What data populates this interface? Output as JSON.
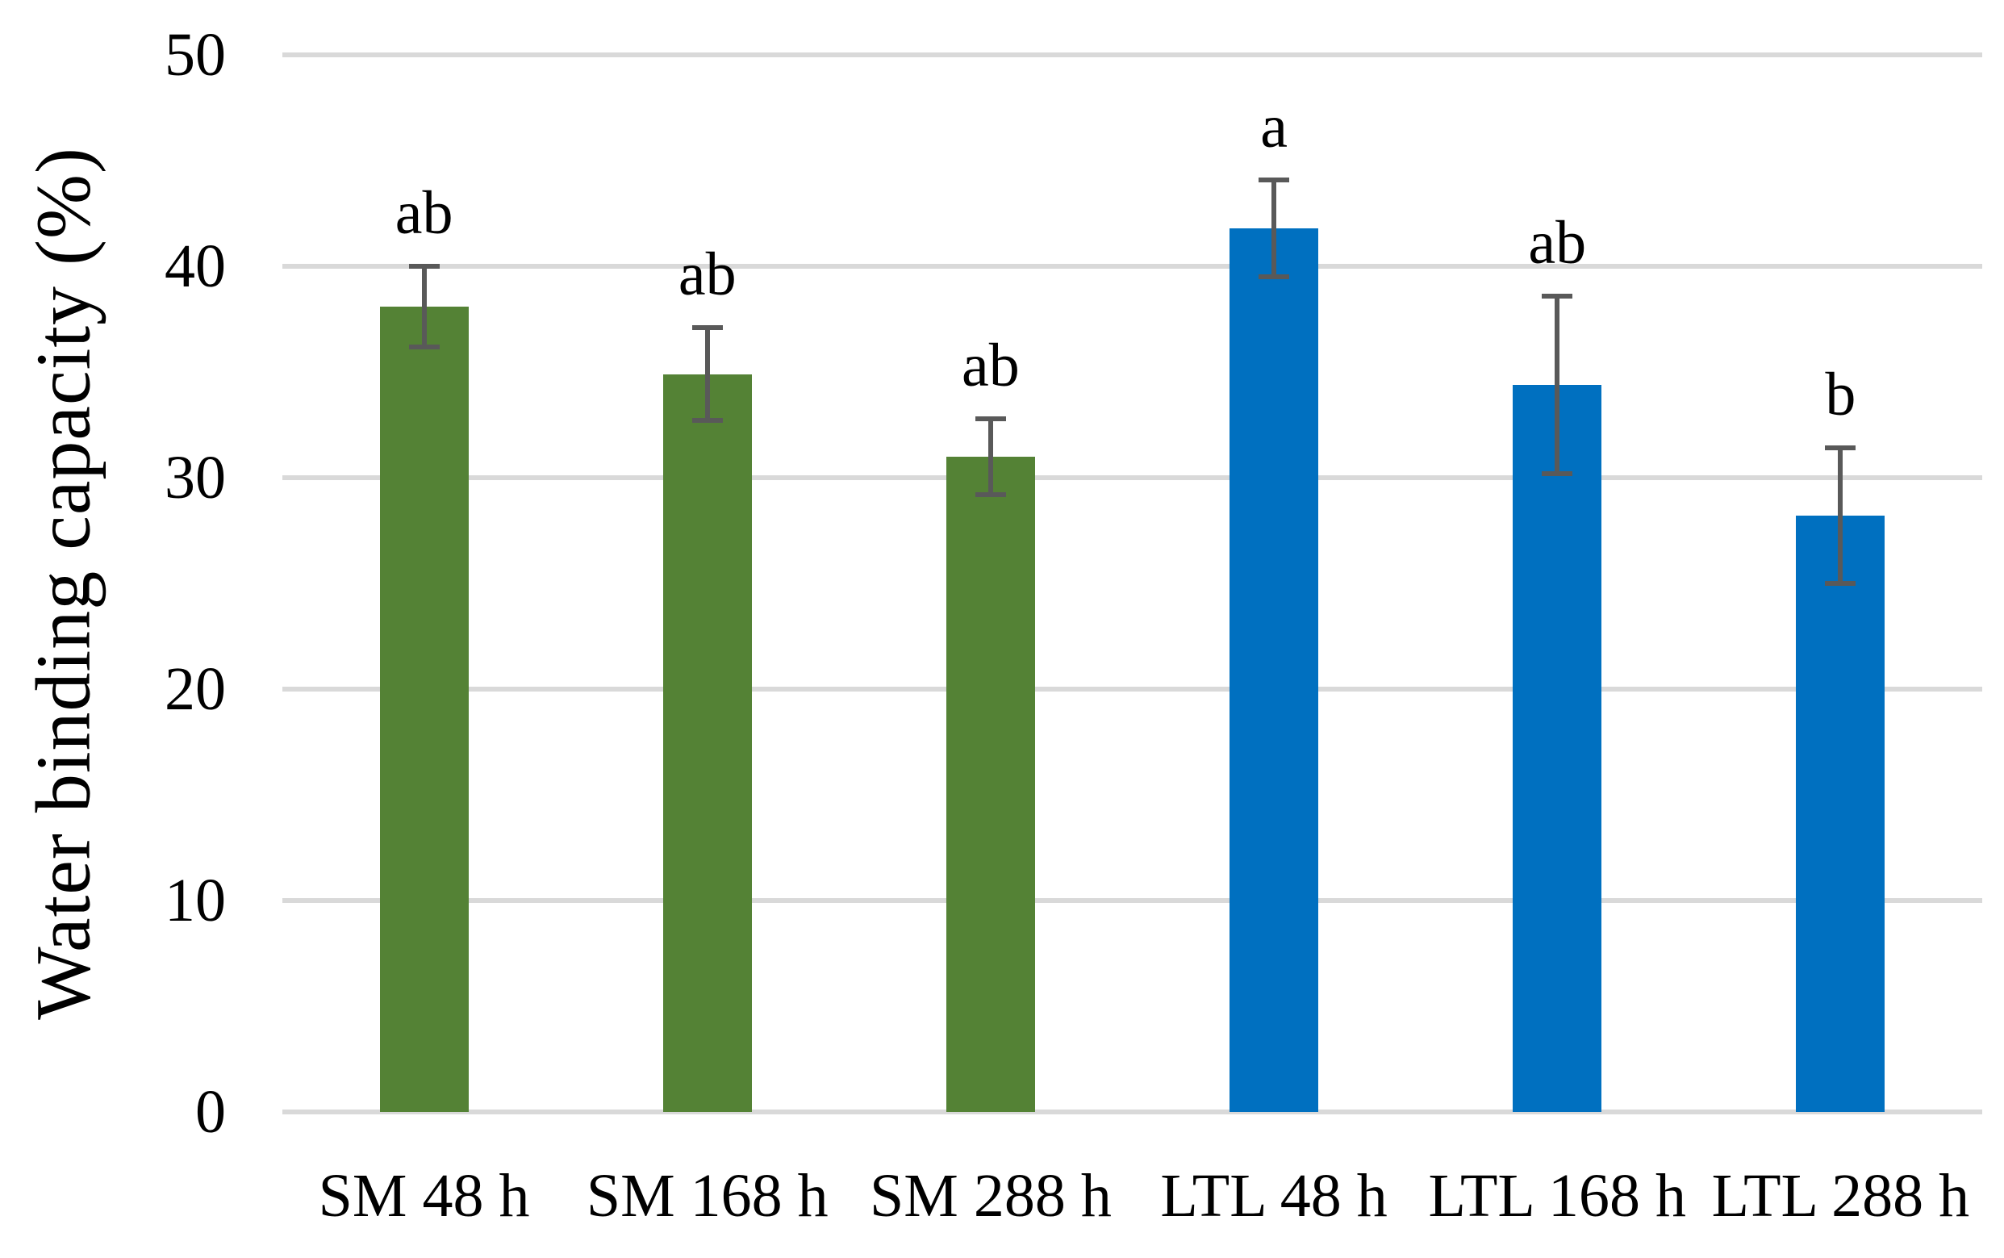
{
  "chart_data": {
    "type": "bar",
    "title": "",
    "ylabel": "Water binding capacity (%)",
    "xlabel": "",
    "ylim": [
      0,
      50
    ],
    "yticks": [
      0,
      10,
      20,
      30,
      40,
      50
    ],
    "grid": "horizontal",
    "legend": "none",
    "categories": [
      "SM 48 h",
      "SM 168 h",
      "SM 288 h",
      "LTL 48 h",
      "LTL 168 h",
      "LTL 288 h"
    ],
    "values": [
      38.1,
      34.9,
      31.0,
      41.8,
      34.4,
      28.2
    ],
    "errors": [
      1.9,
      2.2,
      1.8,
      2.3,
      4.2,
      3.2
    ],
    "significance_letters": [
      "ab",
      "ab",
      "ab",
      "a",
      "ab",
      "b"
    ],
    "groups": [
      "SM",
      "SM",
      "SM",
      "LTL",
      "LTL",
      "LTL"
    ],
    "colors": {
      "SM": "#548235",
      "LTL": "#0070C0",
      "gridline": "#D9D9D9",
      "error_bar": "#595959",
      "text": "#000000",
      "background": "#FFFFFF"
    }
  }
}
